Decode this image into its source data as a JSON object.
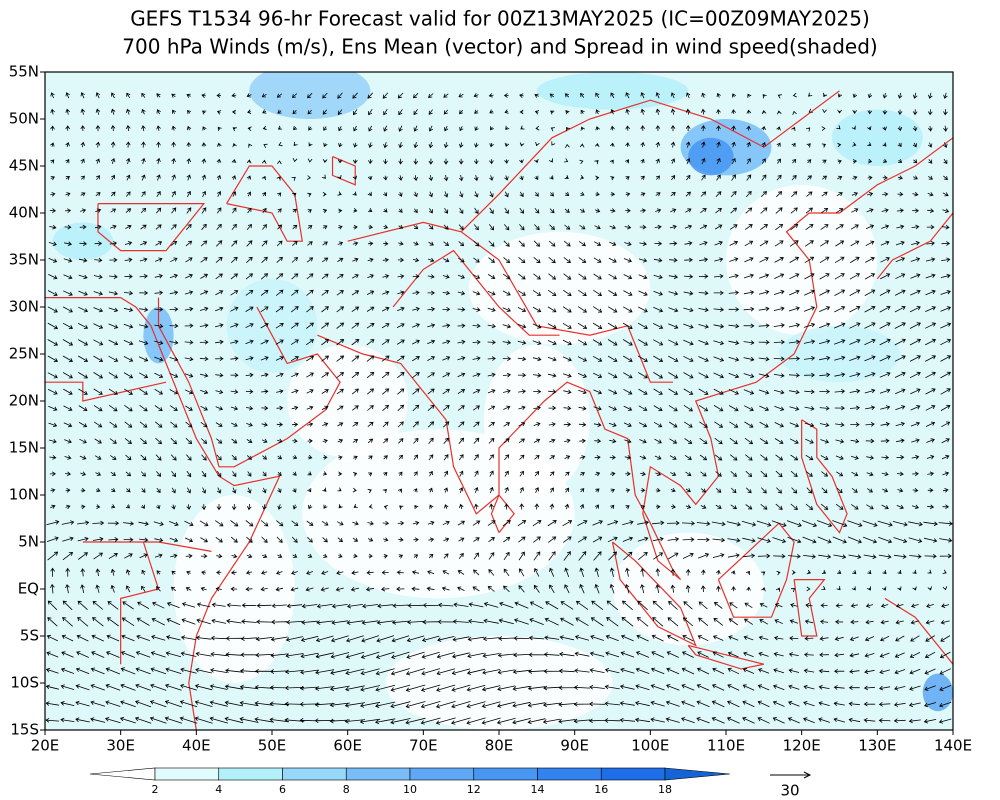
{
  "header": {
    "title": "GEFS T1534 96-hr Forecast valid for 00Z13MAY2025 (IC=00Z09MAY2025)",
    "subtitle": "700 hPa Winds (m/s), Ens Mean (vector) and Spread in wind speed(shaded)"
  },
  "map": {
    "lon_range": [
      20,
      140
    ],
    "lat_range": [
      -15,
      55
    ],
    "lon_ticks": [
      {
        "value": 20,
        "label": "20E"
      },
      {
        "value": 30,
        "label": "30E"
      },
      {
        "value": 40,
        "label": "40E"
      },
      {
        "value": 50,
        "label": "50E"
      },
      {
        "value": 60,
        "label": "60E"
      },
      {
        "value": 70,
        "label": "70E"
      },
      {
        "value": 80,
        "label": "80E"
      },
      {
        "value": 90,
        "label": "90E"
      },
      {
        "value": 100,
        "label": "100E"
      },
      {
        "value": 110,
        "label": "110E"
      },
      {
        "value": 120,
        "label": "120E"
      },
      {
        "value": 130,
        "label": "130E"
      },
      {
        "value": 140,
        "label": "140E"
      }
    ],
    "lat_ticks": [
      {
        "value": 55,
        "label": "55N"
      },
      {
        "value": 50,
        "label": "50N"
      },
      {
        "value": 45,
        "label": "45N"
      },
      {
        "value": 40,
        "label": "40N"
      },
      {
        "value": 35,
        "label": "35N"
      },
      {
        "value": 30,
        "label": "30N"
      },
      {
        "value": 25,
        "label": "25N"
      },
      {
        "value": 20,
        "label": "20N"
      },
      {
        "value": 15,
        "label": "15N"
      },
      {
        "value": 10,
        "label": "10N"
      },
      {
        "value": 5,
        "label": "5N"
      },
      {
        "value": 0,
        "label": "EQ"
      },
      {
        "value": -5,
        "label": "5S"
      },
      {
        "value": -10,
        "label": "10S"
      },
      {
        "value": -15,
        "label": "15S"
      }
    ]
  },
  "colorbar": {
    "levels": [
      2,
      4,
      6,
      8,
      10,
      12,
      14,
      16,
      18
    ],
    "colors": [
      "#ffffff",
      "#e1fcfc",
      "#b4f0fa",
      "#96d7fa",
      "#78bdf8",
      "#5ea8f5",
      "#4696f2",
      "#3282ef",
      "#1e6ee8",
      "#1464d8"
    ]
  },
  "reference_vector": {
    "label": "30"
  }
}
